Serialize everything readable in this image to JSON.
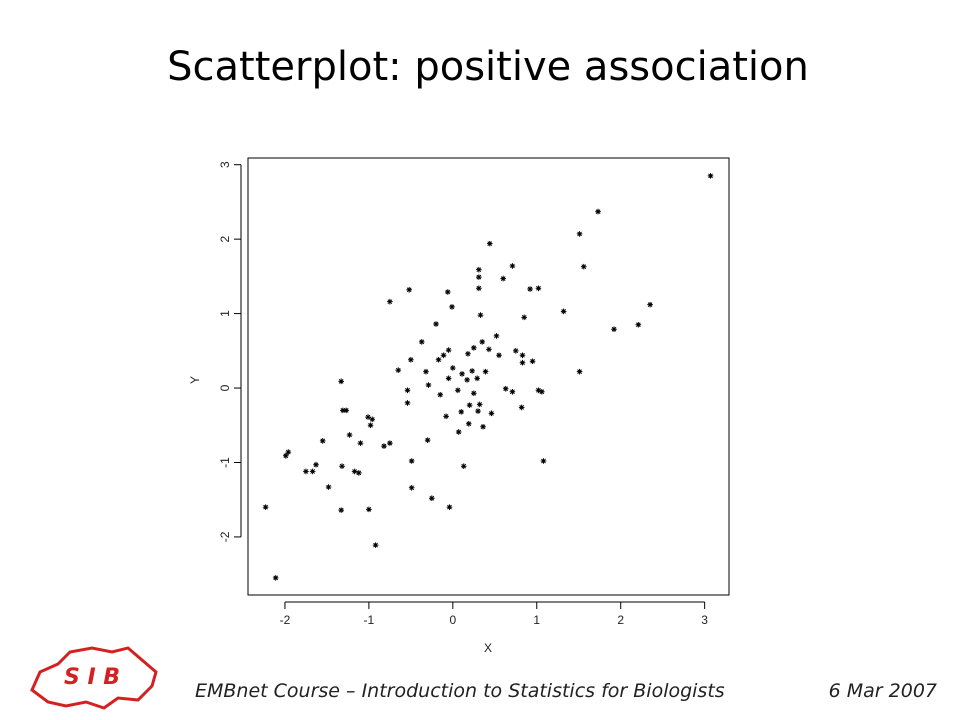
{
  "title": "Scatterplot: positive association",
  "chart_data": {
    "type": "scatter",
    "xlabel": "X",
    "ylabel": "Y",
    "color": "#000000",
    "x": [
      3.07,
      1.73,
      1.51,
      0.44,
      1.56,
      0.71,
      0.31,
      0.31,
      0.6,
      -0.52,
      -0.06,
      0.31,
      0.92,
      1.02,
      -0.75,
      -0.01,
      1.32,
      2.35,
      2.21,
      1.92,
      0.33,
      0.85,
      -0.2,
      0.52,
      -0.37,
      0.35,
      -0.05,
      0.25,
      0.43,
      0.55,
      0.75,
      0.83,
      -0.11,
      0.18,
      -0.17,
      0.83,
      0.95,
      -0.5,
      0.0,
      -0.32,
      -0.65,
      0.11,
      0.39,
      0.23,
      -0.05,
      0.17,
      0.29,
      1.51,
      -1.33,
      -0.29,
      0.06,
      -0.15,
      -0.54,
      0.63,
      0.71,
      1.02,
      1.06,
      0.25,
      -0.54,
      0.2,
      0.32,
      0.82,
      0.46,
      0.3,
      0.1,
      -1.31,
      -1.27,
      -1.01,
      -0.96,
      -0.08,
      -0.98,
      0.19,
      0.36,
      0.07,
      -1.23,
      -1.55,
      -0.3,
      -0.75,
      -0.82,
      -1.1,
      -1.96,
      -1.99,
      1.08,
      -0.49,
      0.13,
      -1.63,
      -1.32,
      -1.17,
      -1.12,
      -1.75,
      -1.67,
      -1.48,
      -0.49,
      -0.25,
      -2.23,
      -1.33,
      -1.0,
      -0.04,
      -0.92,
      -2.11
    ],
    "y": [
      2.85,
      2.37,
      2.07,
      1.94,
      1.63,
      1.64,
      1.59,
      1.49,
      1.47,
      1.32,
      1.29,
      1.34,
      1.33,
      1.34,
      1.16,
      1.09,
      1.03,
      1.12,
      0.85,
      0.79,
      0.98,
      0.95,
      0.86,
      0.7,
      0.62,
      0.62,
      0.51,
      0.54,
      0.52,
      0.44,
      0.5,
      0.44,
      0.44,
      0.46,
      0.38,
      0.34,
      0.36,
      0.38,
      0.27,
      0.22,
      0.24,
      0.19,
      0.22,
      0.23,
      0.13,
      0.11,
      0.13,
      0.22,
      0.09,
      0.04,
      -0.03,
      -0.09,
      -0.03,
      -0.01,
      -0.05,
      -0.03,
      -0.05,
      -0.07,
      -0.2,
      -0.23,
      -0.22,
      -0.26,
      -0.34,
      -0.31,
      -0.32,
      -0.3,
      -0.3,
      -0.39,
      -0.42,
      -0.38,
      -0.5,
      -0.48,
      -0.52,
      -0.59,
      -0.63,
      -0.71,
      -0.7,
      -0.74,
      -0.78,
      -0.74,
      -0.86,
      -0.91,
      -0.98,
      -0.98,
      -1.05,
      -1.03,
      -1.05,
      -1.12,
      -1.14,
      -1.12,
      -1.12,
      -1.33,
      -1.34,
      -1.48,
      -1.6,
      -1.64,
      -1.63,
      -1.6,
      -2.11,
      -2.55
    ],
    "xlim": [
      -2.44,
      3.29
    ],
    "ylim": [
      -2.78,
      3.09
    ],
    "xticks": [
      -2,
      -1,
      0,
      1,
      2,
      3
    ],
    "yticks": [
      -2,
      -1,
      0,
      1,
      2,
      3
    ]
  },
  "footer": {
    "logo": "S I B",
    "course": "EMBnet Course – Introduction to Statistics for Biologists",
    "date": "6 Mar 2007"
  }
}
